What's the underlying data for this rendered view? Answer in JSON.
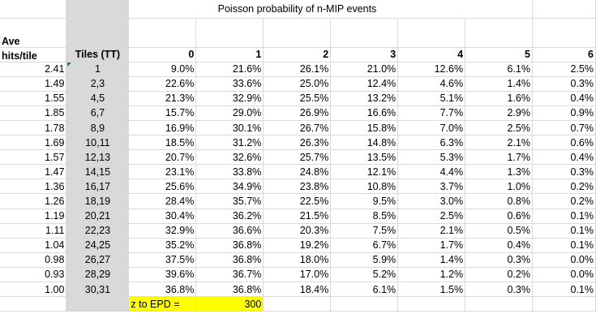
{
  "sheet": {
    "title": "Poisson probability of n-MIP events",
    "col_a_header_line1": "Ave",
    "col_a_header_line2": "hits/tile",
    "col_b_header": "Tiles (TT)",
    "n_headers": [
      "0",
      "1",
      "2",
      "3",
      "4",
      "5",
      "6"
    ],
    "rows": [
      {
        "ave": "2.41",
        "tiles": "1",
        "p": [
          "9.0%",
          "21.6%",
          "26.1%",
          "21.0%",
          "12.6%",
          "6.1%",
          "2.5%"
        ]
      },
      {
        "ave": "1.49",
        "tiles": "2,3",
        "p": [
          "22.6%",
          "33.6%",
          "25.0%",
          "12.4%",
          "4.6%",
          "1.4%",
          "0.3%"
        ]
      },
      {
        "ave": "1.55",
        "tiles": "4,5",
        "p": [
          "21.3%",
          "32.9%",
          "25.5%",
          "13.2%",
          "5.1%",
          "1.6%",
          "0.4%"
        ]
      },
      {
        "ave": "1.85",
        "tiles": "6,7",
        "p": [
          "15.7%",
          "29.0%",
          "26.9%",
          "16.6%",
          "7.7%",
          "2.9%",
          "0.9%"
        ]
      },
      {
        "ave": "1.78",
        "tiles": "8,9",
        "p": [
          "16.9%",
          "30.1%",
          "26.7%",
          "15.8%",
          "7.0%",
          "2.5%",
          "0.7%"
        ]
      },
      {
        "ave": "1.69",
        "tiles": "10,11",
        "p": [
          "18.5%",
          "31.2%",
          "26.3%",
          "14.8%",
          "6.3%",
          "2.1%",
          "0.6%"
        ]
      },
      {
        "ave": "1.57",
        "tiles": "12,13",
        "p": [
          "20.7%",
          "32.6%",
          "25.7%",
          "13.5%",
          "5.3%",
          "1.7%",
          "0.4%"
        ]
      },
      {
        "ave": "1.47",
        "tiles": "14,15",
        "p": [
          "23.1%",
          "33.8%",
          "24.8%",
          "12.1%",
          "4.4%",
          "1.3%",
          "0.3%"
        ]
      },
      {
        "ave": "1.36",
        "tiles": "16,17",
        "p": [
          "25.6%",
          "34.9%",
          "23.8%",
          "10.8%",
          "3.7%",
          "1.0%",
          "0.2%"
        ]
      },
      {
        "ave": "1.26",
        "tiles": "18,19",
        "p": [
          "28.4%",
          "35.7%",
          "22.5%",
          "9.5%",
          "3.0%",
          "0.8%",
          "0.2%"
        ]
      },
      {
        "ave": "1.19",
        "tiles": "20,21",
        "p": [
          "30.4%",
          "36.2%",
          "21.5%",
          "8.5%",
          "2.5%",
          "0.6%",
          "0.1%"
        ]
      },
      {
        "ave": "1.11",
        "tiles": "22,23",
        "p": [
          "32.9%",
          "36.6%",
          "20.3%",
          "7.5%",
          "2.1%",
          "0.5%",
          "0.1%"
        ]
      },
      {
        "ave": "1.04",
        "tiles": "24,25",
        "p": [
          "35.2%",
          "36.8%",
          "19.2%",
          "6.7%",
          "1.7%",
          "0.4%",
          "0.1%"
        ]
      },
      {
        "ave": "0.98",
        "tiles": "26,27",
        "p": [
          "37.5%",
          "36.8%",
          "18.0%",
          "5.9%",
          "1.4%",
          "0.3%",
          "0.0%"
        ]
      },
      {
        "ave": "0.93",
        "tiles": "28,29",
        "p": [
          "39.6%",
          "36.7%",
          "17.0%",
          "5.2%",
          "1.2%",
          "0.2%",
          "0.0%"
        ]
      },
      {
        "ave": "1.00",
        "tiles": "30,31",
        "p": [
          "36.8%",
          "36.8%",
          "18.4%",
          "6.1%",
          "1.5%",
          "0.3%",
          "0.1%"
        ]
      }
    ],
    "footer_label": "z to EPD =",
    "footer_value": "300",
    "colors": {
      "gridline": "#d9d9d9",
      "tiles_shade": "#d9d9d9",
      "highlight": "#ffff00",
      "error_marker": "#1a8c1a"
    }
  }
}
